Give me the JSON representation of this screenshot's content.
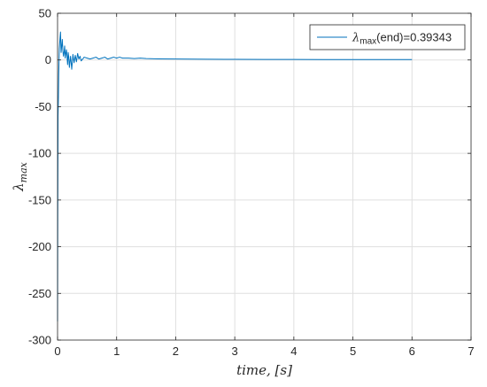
{
  "chart_data": {
    "type": "line",
    "title": "",
    "xlabel": "time, [s]",
    "ylabel": "λ_max",
    "xlim": [
      0,
      7
    ],
    "ylim": [
      -300,
      50
    ],
    "x_ticks": [
      0,
      1,
      2,
      3,
      4,
      5,
      6,
      7
    ],
    "y_ticks": [
      -300,
      -250,
      -200,
      -150,
      -100,
      -50,
      0,
      50
    ],
    "grid": true,
    "legend_position": "top-right",
    "series": [
      {
        "name": "λ_max(end)=0.39343",
        "color": "#0072bd",
        "x": [
          0,
          0.003,
          0.008,
          0.015,
          0.02,
          0.03,
          0.04,
          0.05,
          0.06,
          0.07,
          0.08,
          0.09,
          0.1,
          0.11,
          0.12,
          0.13,
          0.14,
          0.15,
          0.16,
          0.17,
          0.18,
          0.19,
          0.2,
          0.22,
          0.24,
          0.26,
          0.28,
          0.3,
          0.32,
          0.34,
          0.36,
          0.38,
          0.4,
          0.45,
          0.5,
          0.55,
          0.6,
          0.65,
          0.7,
          0.75,
          0.8,
          0.85,
          0.9,
          0.95,
          1.0,
          1.05,
          1.1,
          1.2,
          1.3,
          1.4,
          1.5,
          1.7,
          2.0,
          2.5,
          3.0,
          3.5,
          4.0,
          4.5,
          5.0,
          5.5,
          6.0
        ],
        "values": [
          -280,
          -170,
          -60,
          -40,
          -15,
          12,
          22,
          30,
          8,
          15,
          22,
          10,
          4,
          8,
          15,
          2,
          7,
          11,
          4,
          -5,
          8,
          3,
          -8,
          4,
          -10,
          6,
          -3,
          5,
          -2,
          7,
          1,
          4,
          -1,
          3,
          2,
          1,
          2,
          3,
          1,
          2,
          3,
          1,
          2,
          3,
          2,
          3,
          2,
          2,
          1.5,
          2,
          1.5,
          1.2,
          1.0,
          0.8,
          0.7,
          0.6,
          0.55,
          0.5,
          0.45,
          0.42,
          0.39343
        ]
      }
    ]
  }
}
